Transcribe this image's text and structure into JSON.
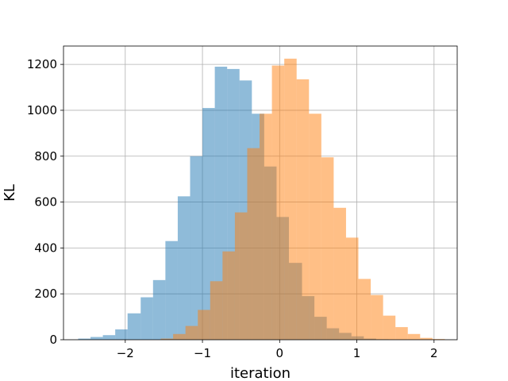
{
  "chart_data": {
    "type": "histogram",
    "xlabel": "iteration",
    "ylabel": "KL",
    "xlim": [
      -2.8,
      2.3
    ],
    "ylim": [
      0,
      1280
    ],
    "x_ticks": [
      -2,
      -1,
      0,
      1,
      2
    ],
    "x_tick_labels": [
      "−2",
      "−1",
      "0",
      "1",
      "2"
    ],
    "y_ticks": [
      0,
      200,
      400,
      600,
      800,
      1000,
      1200
    ],
    "y_tick_labels": [
      "0",
      "200",
      "400",
      "600",
      "800",
      "1000",
      "1200"
    ],
    "grid": true,
    "series": [
      {
        "color": "#1f77b4",
        "opacity": 0.5,
        "bin_edges": [
          -2.61,
          -2.45,
          -2.29,
          -2.13,
          -1.97,
          -1.8,
          -1.64,
          -1.48,
          -1.32,
          -1.16,
          -1.0,
          -0.84,
          -0.68,
          -0.52,
          -0.36,
          -0.2,
          -0.04,
          0.12,
          0.29,
          0.45,
          0.61,
          0.77,
          0.93,
          1.09,
          1.25,
          1.41,
          1.57,
          1.73,
          1.89,
          2.05
        ],
        "counts": [
          5,
          12,
          20,
          45,
          115,
          185,
          260,
          430,
          625,
          800,
          1010,
          1190,
          1180,
          1130,
          985,
          755,
          535,
          335,
          190,
          100,
          50,
          30,
          15,
          5,
          2,
          0,
          0,
          0,
          0
        ]
      },
      {
        "color": "#ff7f0e",
        "opacity": 0.5,
        "bin_edges": [
          -1.54,
          -1.38,
          -1.22,
          -1.06,
          -0.9,
          -0.74,
          -0.58,
          -0.42,
          -0.26,
          -0.1,
          0.06,
          0.22,
          0.38,
          0.54,
          0.7,
          0.86,
          1.02,
          1.18,
          1.34,
          1.5,
          1.66,
          1.82,
          1.98,
          2.14
        ],
        "counts": [
          5,
          25,
          60,
          130,
          255,
          385,
          555,
          835,
          985,
          1195,
          1225,
          1135,
          985,
          795,
          575,
          445,
          265,
          195,
          105,
          55,
          25,
          8,
          3
        ]
      }
    ]
  }
}
